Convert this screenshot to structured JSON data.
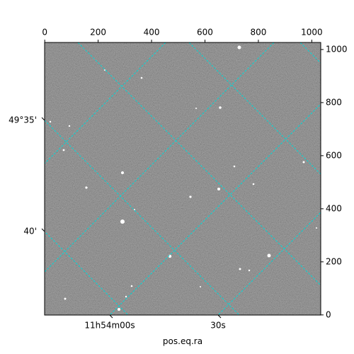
{
  "chart_data": {
    "type": "image",
    "xlabel": "pos.eq.ra",
    "xlim": [
      -0.5,
      1033.5
    ],
    "ylim": [
      -0.5,
      1026.5
    ],
    "xticks": [
      0,
      200,
      400,
      600,
      800,
      1000
    ],
    "yticks": [
      0,
      200,
      400,
      600,
      800,
      1000
    ],
    "ra_ticks": [
      {
        "value": 0,
        "label": "11h54m00s"
      },
      {
        "value": 30,
        "label": "30s"
      }
    ],
    "dec_ticks": [
      {
        "value": 35,
        "label": "49°35'"
      },
      {
        "value": 40,
        "label": "40'"
      }
    ],
    "ra_grid": [
      -60,
      -30,
      0,
      30
    ],
    "dec_grid": [
      20,
      25,
      30,
      35,
      40
    ],
    "grid_color": "#00d8d8"
  }
}
